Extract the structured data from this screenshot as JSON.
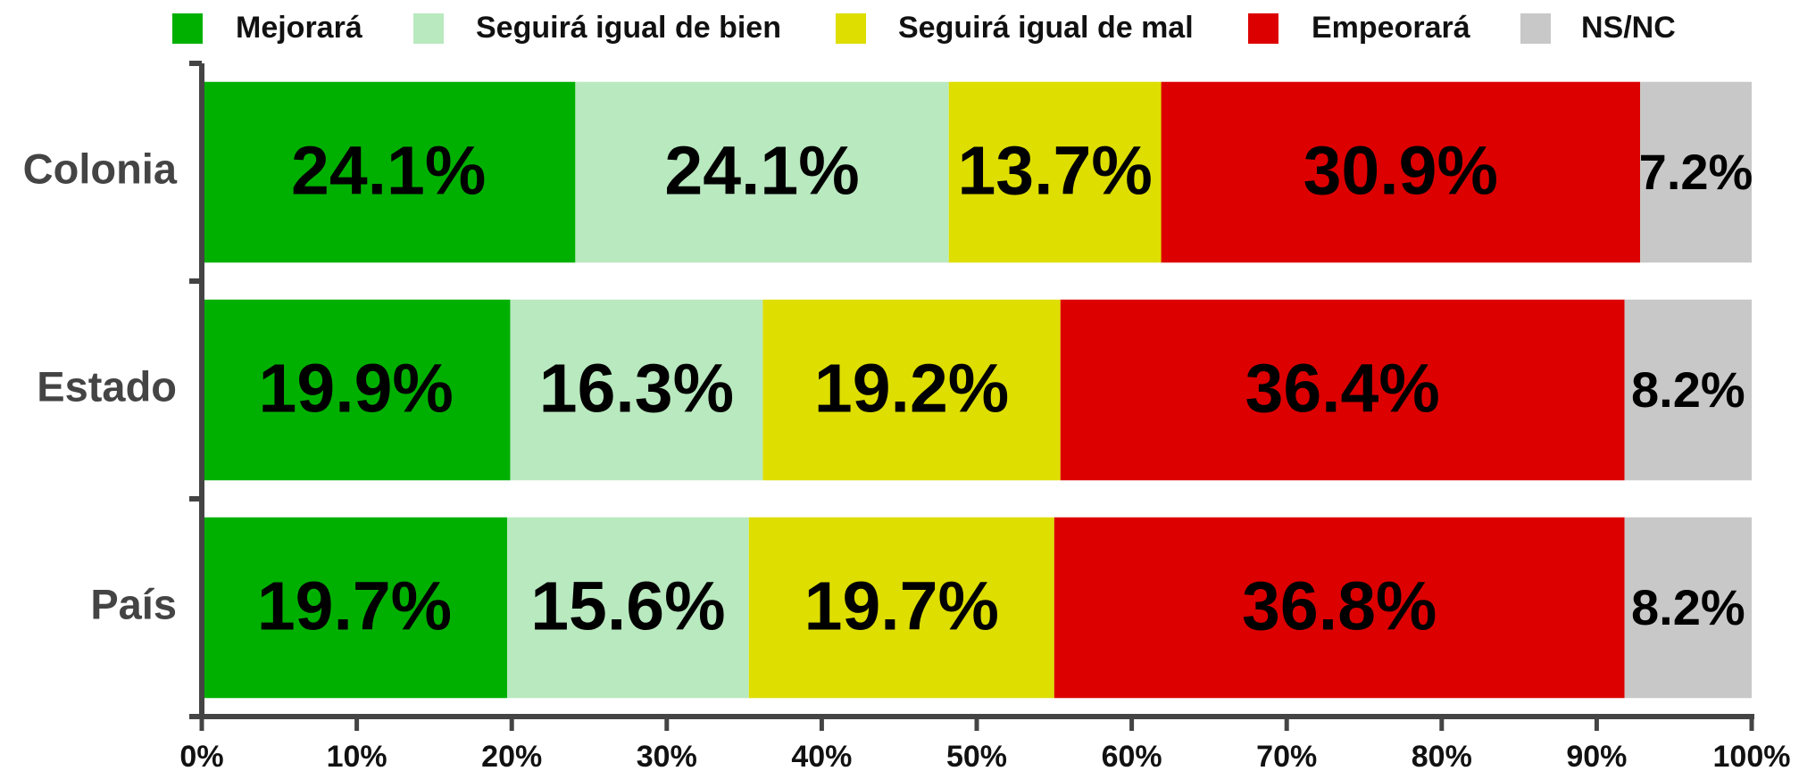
{
  "chart_data": {
    "type": "stacked-bar-horizontal",
    "categories": [
      "Colonia",
      "Estado",
      "País"
    ],
    "series": [
      {
        "name": "Mejorará",
        "color": "#00b000",
        "values": [
          24.1,
          19.9,
          19.7
        ],
        "value_labels": [
          "24.1%",
          "19.9%",
          "19.7%"
        ]
      },
      {
        "name": "Seguirá igual de bien",
        "color": "#b9e9bf",
        "values": [
          24.1,
          16.3,
          15.6
        ],
        "value_labels": [
          "24.1%",
          "16.3%",
          "15.6%"
        ]
      },
      {
        "name": "Seguirá igual de mal",
        "color": "#dede00",
        "values": [
          13.7,
          19.2,
          19.7
        ],
        "value_labels": [
          "13.7%",
          "19.2%",
          "19.7%"
        ]
      },
      {
        "name": "Empeorará",
        "color": "#dd0000",
        "values": [
          30.9,
          36.4,
          36.8
        ],
        "value_labels": [
          "30.9%",
          "36.4%",
          "36.8%"
        ]
      },
      {
        "name": "NS/NC",
        "color": "#c8c8c8",
        "values": [
          7.2,
          8.2,
          8.2
        ],
        "value_labels": [
          "7.2%",
          "8.2%",
          "8.2%"
        ]
      }
    ],
    "xlim": [
      0,
      100
    ],
    "xticks": [
      {
        "value": 0,
        "label": "0%"
      },
      {
        "value": 10,
        "label": "10%"
      },
      {
        "value": 20,
        "label": "20%"
      },
      {
        "value": 30,
        "label": "30%"
      },
      {
        "value": 40,
        "label": "40%"
      },
      {
        "value": 50,
        "label": "50%"
      },
      {
        "value": 60,
        "label": "60%"
      },
      {
        "value": 70,
        "label": "70%"
      },
      {
        "value": 80,
        "label": "80%"
      },
      {
        "value": 90,
        "label": "90%"
      },
      {
        "value": 100,
        "label": "100%"
      }
    ],
    "legend": "top"
  }
}
